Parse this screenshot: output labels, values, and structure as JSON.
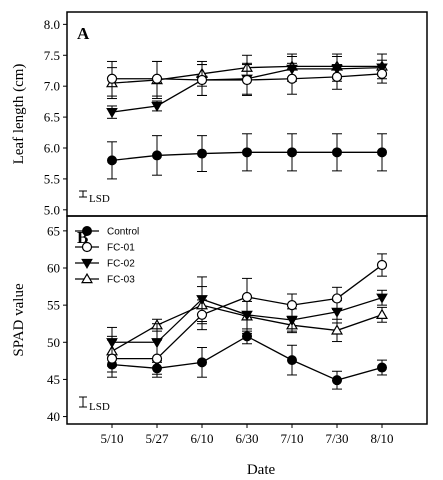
{
  "chart_data": {
    "type": "line",
    "categories": [
      "5/10",
      "5/27",
      "6/10",
      "6/30",
      "7/10",
      "7/30",
      "8/10"
    ],
    "xlabel": "Date",
    "legend": {
      "placement": "top-left",
      "entries": [
        "Control",
        "FC-01",
        "FC-02",
        "FC-03"
      ]
    },
    "panels": [
      {
        "label": "A",
        "ylabel": "Leaf length (cm)",
        "ylim": [
          4.9,
          8.2
        ],
        "yticks": [
          5.0,
          5.5,
          6.0,
          6.5,
          7.0,
          7.5,
          8.0
        ],
        "lsd_label": "LSD",
        "series": [
          {
            "name": "Control",
            "marker": "circle-filled",
            "values": [
              5.8,
              5.88,
              5.91,
              5.93,
              5.93,
              5.93,
              5.93
            ],
            "errors": [
              0.3,
              0.32,
              0.29,
              0.3,
              0.3,
              0.3,
              0.3
            ]
          },
          {
            "name": "FC-01",
            "marker": "circle-open",
            "values": [
              7.12,
              7.12,
              7.1,
              7.1,
              7.12,
              7.15,
              7.2
            ],
            "errors": [
              0.28,
              0.28,
              0.25,
              0.25,
              0.25,
              0.2,
              0.15
            ]
          },
          {
            "name": "FC-02",
            "marker": "triangle-down-filled",
            "values": [
              6.58,
              6.68,
              7.1,
              7.12,
              7.28,
              7.28,
              7.3
            ],
            "errors": [
              0.1,
              0.08,
              0.25,
              0.25,
              0.2,
              0.2,
              0.12
            ]
          },
          {
            "name": "FC-03",
            "marker": "triangle-up-open",
            "values": [
              7.05,
              7.1,
              7.2,
              7.3,
              7.32,
              7.32,
              7.32
            ],
            "errors": [
              0.25,
              0.3,
              0.2,
              0.2,
              0.2,
              0.2,
              0.2
            ]
          }
        ]
      },
      {
        "label": "B",
        "ylabel": "SPAD value",
        "ylim": [
          39,
          67
        ],
        "yticks": [
          40,
          45,
          50,
          55,
          60,
          65
        ],
        "lsd_label": "LSD",
        "series": [
          {
            "name": "Control",
            "marker": "circle-filled",
            "values": [
              47,
              46.5,
              47.3,
              50.8,
              47.6,
              44.9,
              46.6
            ],
            "errors": [
              1.0,
              0.8,
              2.0,
              1.0,
              2.0,
              1.2,
              1.0
            ]
          },
          {
            "name": "FC-01",
            "marker": "circle-open",
            "values": [
              47.8,
              47.8,
              53.7,
              56.1,
              55.0,
              55.9,
              60.4
            ],
            "errors": [
              2.5,
              2.5,
              2.0,
              2.5,
              1.5,
              1.5,
              1.5
            ]
          },
          {
            "name": "FC-02",
            "marker": "triangle-down-filled",
            "values": [
              50.0,
              50.0,
              55.8,
              53.7,
              53.0,
              54.1,
              56.0
            ],
            "errors": [
              2.0,
              2.5,
              3.0,
              2.5,
              1.5,
              1.5,
              1.0
            ]
          },
          {
            "name": "FC-03",
            "marker": "triangle-up-open",
            "values": [
              48.8,
              52.3,
              55.0,
              53.5,
              52.3,
              51.6,
              53.7
            ],
            "errors": [
              2.0,
              0.8,
              2.5,
              2.0,
              1.0,
              1.5,
              1.0
            ]
          }
        ]
      }
    ]
  }
}
